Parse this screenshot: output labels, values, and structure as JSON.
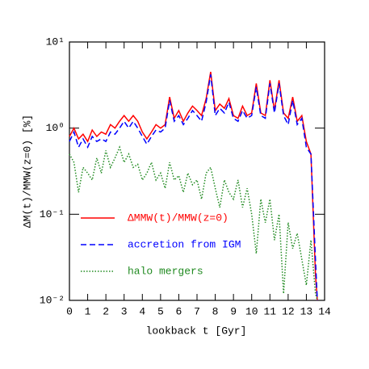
{
  "chart_data": {
    "type": "line",
    "xlabel": "lookback t [Gyr]",
    "ylabel": "ΔM(t)/MMW(z=0) [%]",
    "x": [
      0,
      0.25,
      0.5,
      0.75,
      1,
      1.25,
      1.5,
      1.75,
      2,
      2.25,
      2.5,
      2.75,
      3,
      3.25,
      3.5,
      3.75,
      4,
      4.25,
      4.5,
      4.75,
      5,
      5.25,
      5.5,
      5.75,
      6,
      6.25,
      6.5,
      6.75,
      7,
      7.25,
      7.5,
      7.75,
      8,
      8.25,
      8.5,
      8.75,
      9,
      9.25,
      9.5,
      9.75,
      10,
      10.25,
      10.5,
      10.75,
      11,
      11.25,
      11.5,
      11.75,
      12,
      12.25,
      12.5,
      12.75,
      13,
      13.25,
      13.5,
      13.6
    ],
    "series": [
      {
        "name": "ΔMMW(t)/MMW(z=0)",
        "color": "#ff0000",
        "dash": "solid",
        "values": [
          0.8,
          1.0,
          0.75,
          0.85,
          0.7,
          0.95,
          0.8,
          0.9,
          0.85,
          1.1,
          1.0,
          1.2,
          1.4,
          1.2,
          1.4,
          1.2,
          0.9,
          0.75,
          0.9,
          1.1,
          1.0,
          1.1,
          2.3,
          1.3,
          1.6,
          1.2,
          1.5,
          1.8,
          1.6,
          1.4,
          2.2,
          4.5,
          1.6,
          1.9,
          1.7,
          2.2,
          1.4,
          1.3,
          1.8,
          1.4,
          1.5,
          3.3,
          1.5,
          1.4,
          3.6,
          1.6,
          3.6,
          1.5,
          1.3,
          2.3,
          1.2,
          1.4,
          0.7,
          0.5,
          0.02,
          0.01
        ]
      },
      {
        "name": "accretion from IGM",
        "color": "#0000ff",
        "dash": "dashed",
        "values": [
          0.7,
          0.9,
          0.6,
          0.75,
          0.6,
          0.8,
          0.7,
          0.75,
          0.7,
          0.9,
          0.85,
          1.0,
          1.2,
          1.0,
          1.2,
          1.0,
          0.8,
          0.65,
          0.8,
          0.95,
          0.9,
          1.0,
          2.1,
          1.2,
          1.4,
          1.1,
          1.3,
          1.6,
          1.4,
          1.2,
          2.0,
          4.2,
          1.4,
          1.7,
          1.5,
          2.0,
          1.3,
          1.2,
          1.6,
          1.3,
          1.4,
          3.0,
          1.4,
          1.3,
          3.3,
          1.5,
          3.3,
          1.4,
          1.1,
          2.1,
          1.1,
          1.3,
          0.6,
          0.5,
          0.03,
          0.01
        ]
      },
      {
        "name": "halo mergers",
        "color": "#228b22",
        "dash": "dotted",
        "values": [
          0.5,
          0.4,
          0.18,
          0.35,
          0.3,
          0.25,
          0.45,
          0.3,
          0.55,
          0.35,
          0.45,
          0.6,
          0.4,
          0.5,
          0.35,
          0.38,
          0.25,
          0.3,
          0.4,
          0.25,
          0.3,
          0.2,
          0.4,
          0.25,
          0.28,
          0.18,
          0.3,
          0.22,
          0.25,
          0.15,
          0.3,
          0.35,
          0.2,
          0.12,
          0.25,
          0.18,
          0.15,
          0.25,
          0.12,
          0.2,
          0.1,
          0.035,
          0.15,
          0.08,
          0.15,
          0.05,
          0.1,
          0.012,
          0.08,
          0.04,
          0.06,
          0.03,
          0.015,
          0.05,
          0.012,
          0.01
        ]
      }
    ],
    "xlim": [
      0,
      14
    ],
    "xticks": [
      0,
      1,
      2,
      3,
      4,
      5,
      6,
      7,
      8,
      9,
      10,
      11,
      12,
      13,
      14
    ],
    "ylim": [
      0.01,
      10
    ],
    "log_y": true,
    "yticks": [
      {
        "value": 0.01,
        "label": "10⁻²"
      },
      {
        "value": 0.1,
        "label": "10⁻¹"
      },
      {
        "value": 1,
        "label": "10⁰"
      },
      {
        "value": 10,
        "label": "10¹"
      }
    ],
    "legend": "left"
  }
}
